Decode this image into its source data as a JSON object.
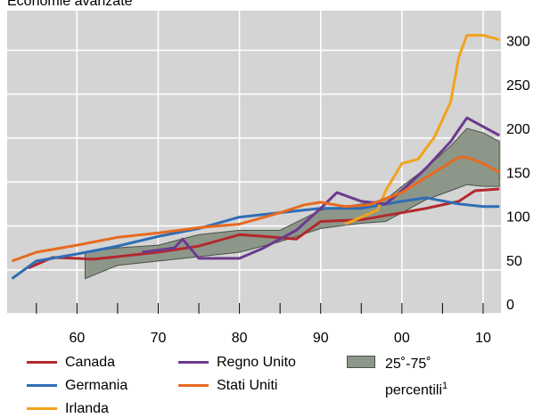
{
  "chart_data": {
    "type": "line",
    "title": "Economie avanzate",
    "xlim": [
      1951.4,
      2012.2
    ],
    "ylim": [
      0,
      345
    ],
    "xticks": [
      {
        "value": 1960,
        "label": "60"
      },
      {
        "value": 1970,
        "label": "70"
      },
      {
        "value": 1980,
        "label": "80"
      },
      {
        "value": 1990,
        "label": "90"
      },
      {
        "value": 2000,
        "label": "00"
      },
      {
        "value": 2010,
        "label": "10"
      }
    ],
    "xminorticks": [
      1955,
      1960,
      1965,
      1970,
      1975,
      1980,
      1985,
      1990,
      1995,
      2000,
      2005,
      2010
    ],
    "yticks": [
      0,
      50,
      100,
      150,
      200,
      250,
      300
    ],
    "grid": true,
    "series": [
      {
        "name": "Canada",
        "color": "#b3282d",
        "x": [
          1954,
          1957,
          1960,
          1962,
          1965,
          1970,
          1975,
          1980,
          1983,
          1987,
          1990,
          1995,
          2000,
          2003,
          2007,
          2009,
          2012
        ],
        "values": [
          52,
          64,
          63,
          62,
          65,
          70,
          77,
          90,
          88,
          85,
          105,
          107,
          115,
          120,
          128,
          140,
          142
        ]
      },
      {
        "name": "Germania",
        "color": "#2f6db5",
        "x": [
          1952,
          1955,
          1960,
          1965,
          1970,
          1975,
          1980,
          1985,
          1990,
          1995,
          2000,
          2003,
          2007,
          2010,
          2012
        ],
        "values": [
          40,
          60,
          68,
          77,
          88,
          97,
          110,
          115,
          120,
          120,
          128,
          132,
          125,
          122,
          122
        ]
      },
      {
        "name": "Irlanda",
        "color": "#f2a31b",
        "x": [
          1993,
          1995,
          1997,
          1998,
          2000,
          2002,
          2004,
          2006,
          2007,
          2008,
          2010,
          2012
        ],
        "values": [
          102,
          110,
          118,
          140,
          171,
          176,
          201,
          241,
          292,
          317,
          317,
          312
        ]
      },
      {
        "name": "Regno Unito",
        "color": "#6b3a8e",
        "x": [
          1968,
          1972,
          1973,
          1975,
          1980,
          1983,
          1987,
          1990,
          1992,
          1995,
          1998,
          2000,
          2003,
          2006,
          2008,
          2010,
          2012
        ],
        "values": [
          70,
          75,
          85,
          63,
          63,
          75,
          95,
          120,
          138,
          128,
          125,
          140,
          166,
          196,
          223,
          213,
          203
        ]
      },
      {
        "name": "Stati Uniti",
        "color": "#e86a1f",
        "x": [
          1952,
          1955,
          1960,
          1965,
          1970,
          1975,
          1980,
          1985,
          1988,
          1990,
          1993,
          1996,
          2000,
          2004,
          2007,
          2008,
          2010,
          2012
        ],
        "values": [
          60,
          70,
          78,
          87,
          92,
          98,
          102,
          115,
          124,
          127,
          122,
          124,
          138,
          161,
          178,
          178,
          171,
          161
        ]
      }
    ],
    "band": {
      "name": "25˚-75˚ percentili",
      "note": "1",
      "color": "#8c978a",
      "x": [
        1961,
        1965,
        1970,
        1975,
        1980,
        1985,
        1990,
        1995,
        1998,
        2000,
        2003,
        2006,
        2008,
        2010,
        2012
      ],
      "lower": [
        40,
        55,
        60,
        65,
        70,
        82,
        97,
        103,
        105,
        115,
        130,
        140,
        147,
        145,
        145
      ],
      "upper": [
        70,
        75,
        78,
        90,
        95,
        95,
        118,
        125,
        130,
        145,
        166,
        191,
        211,
        206,
        196
      ]
    }
  }
}
